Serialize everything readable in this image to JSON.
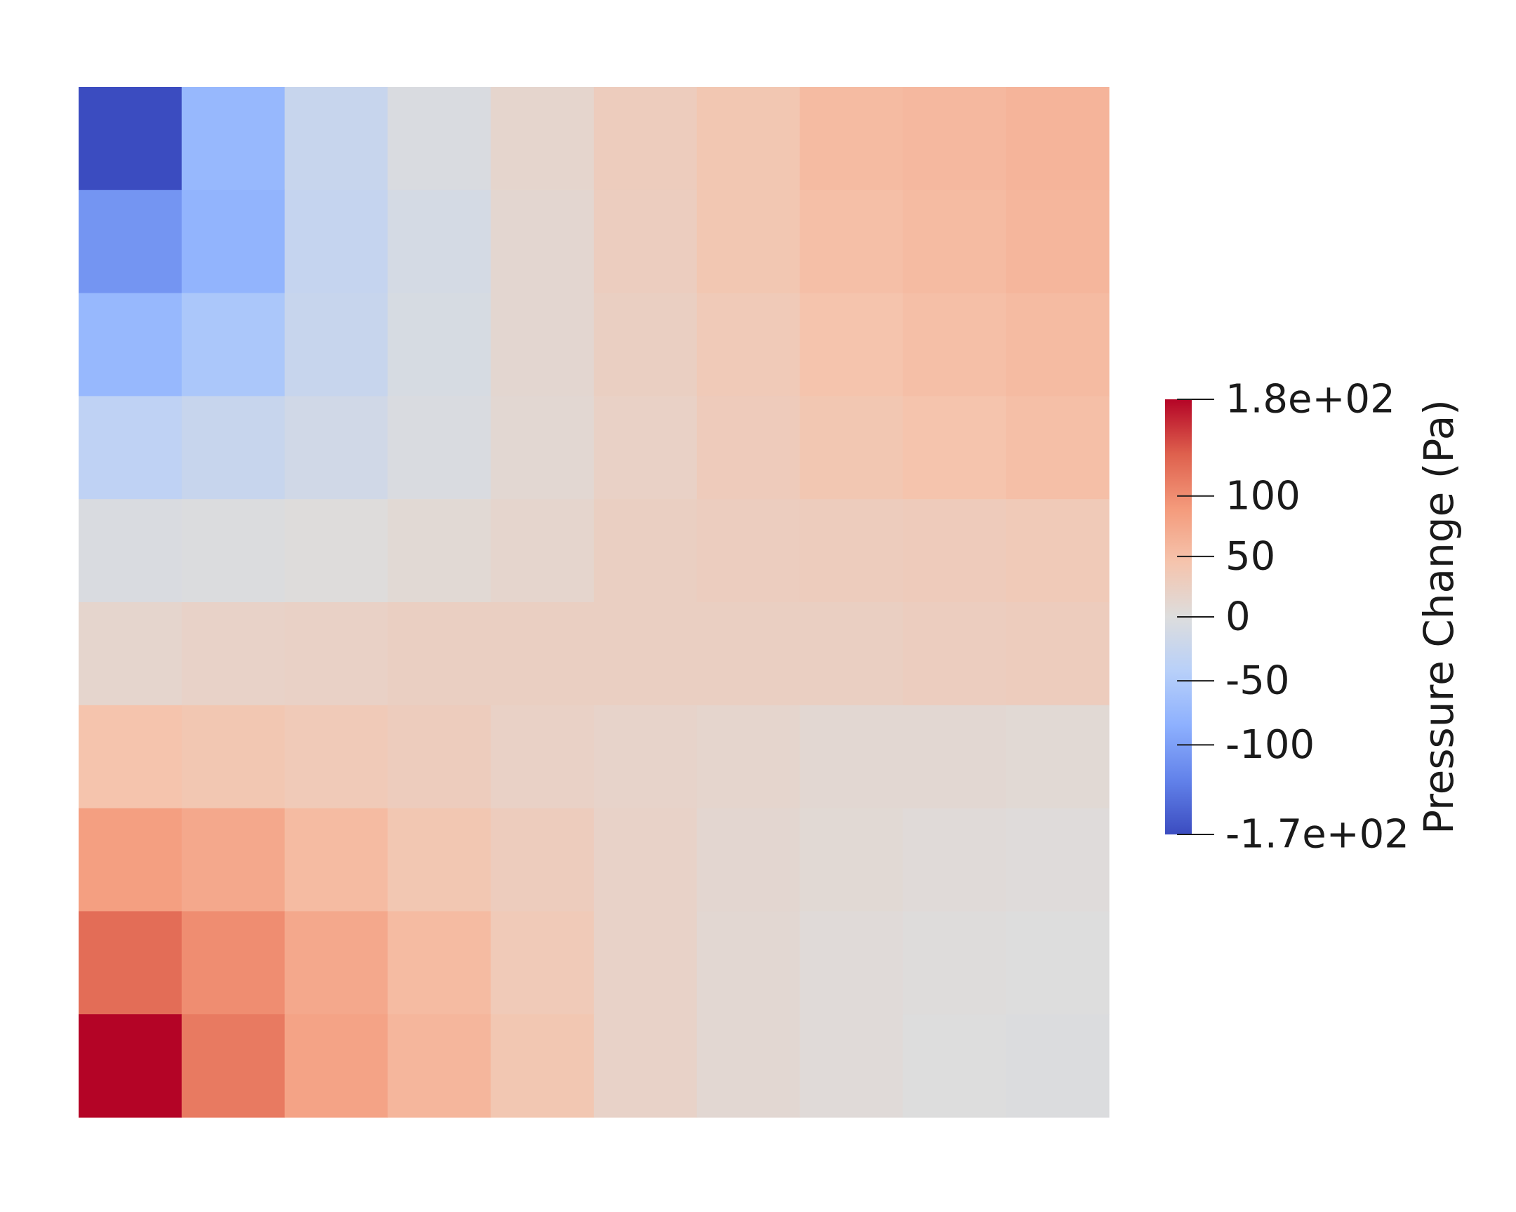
{
  "chart_data": {
    "type": "heatmap",
    "rows": 10,
    "cols": 10,
    "row_order": "top-to-bottom",
    "values": [
      [
        -170,
        -75,
        -25,
        -5,
        15,
        30,
        40,
        55,
        58,
        62
      ],
      [
        -110,
        -80,
        -28,
        -10,
        12,
        28,
        40,
        50,
        55,
        60
      ],
      [
        -75,
        -55,
        -25,
        -8,
        12,
        25,
        35,
        45,
        50,
        55
      ],
      [
        -35,
        -25,
        -15,
        -5,
        10,
        22,
        32,
        40,
        45,
        50
      ],
      [
        -5,
        -2,
        2,
        8,
        15,
        25,
        28,
        30,
        32,
        35
      ],
      [
        15,
        20,
        22,
        25,
        25,
        25,
        25,
        25,
        28,
        30
      ],
      [
        45,
        40,
        35,
        30,
        22,
        18,
        15,
        10,
        10,
        8
      ],
      [
        85,
        75,
        55,
        40,
        30,
        20,
        12,
        8,
        5,
        3
      ],
      [
        125,
        100,
        75,
        55,
        35,
        20,
        10,
        5,
        2,
        0
      ],
      [
        180,
        115,
        80,
        60,
        40,
        20,
        10,
        5,
        0,
        -2
      ]
    ],
    "colormap": "coolwarm",
    "vmin": -170,
    "vmax": 180,
    "colorbar": {
      "title": "Pressure Change (Pa)",
      "ticks": [
        {
          "value": 180,
          "label": "1.8e+02"
        },
        {
          "value": 100,
          "label": "100"
        },
        {
          "value": 50,
          "label": "50"
        },
        {
          "value": 0,
          "label": "0"
        },
        {
          "value": -50,
          "label": "-50"
        },
        {
          "value": -100,
          "label": "-100"
        },
        {
          "value": -170,
          "label": "-1.7e+02"
        }
      ]
    },
    "colors": {
      "low": "#3b4cc0",
      "mid": "#dddddd",
      "high": "#b40426"
    }
  }
}
